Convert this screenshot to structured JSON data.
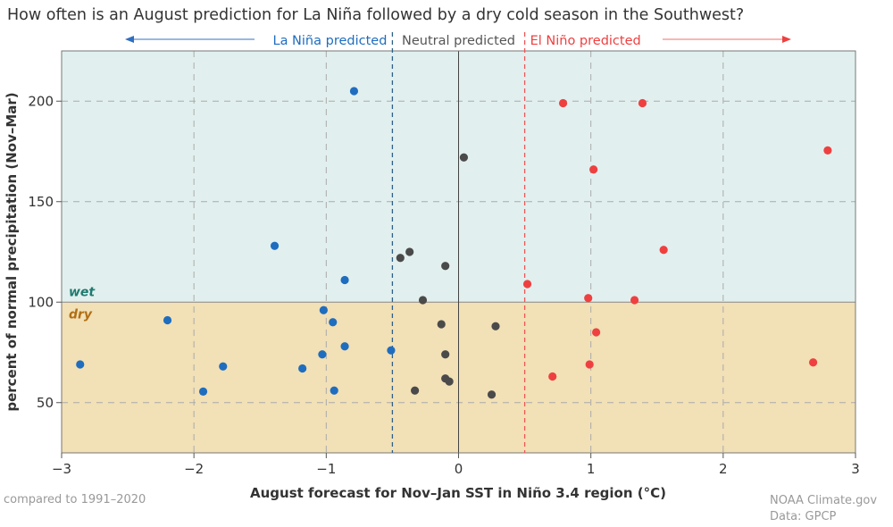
{
  "chart_data": {
    "type": "scatter",
    "title": "How often is an August prediction for La Niña followed by a dry cold season in the Southwest?",
    "xlabel": "August forecast for Nov–Jan SST in Niño 3.4 region (°C)",
    "ylabel": "percent of normal precipitation (Nov–Mar)",
    "xlim": [
      -3,
      3
    ],
    "ylim": [
      25,
      225
    ],
    "xticks": [
      -3,
      -2,
      -1,
      0,
      1,
      2,
      3
    ],
    "xtick_labels": [
      "−3",
      "−2",
      "−1",
      "0",
      "1",
      "2",
      "3"
    ],
    "yticks": [
      50,
      100,
      150,
      200
    ],
    "ytick_labels": [
      "50",
      "100",
      "150",
      "200"
    ],
    "grid": true,
    "thresholds": {
      "la_nina": -0.5,
      "el_nino": 0.5,
      "wet_dry_split": 100
    },
    "region_labels": {
      "wet": "wet",
      "dry": "dry"
    },
    "category_labels": {
      "la_nina": "La Niña predicted",
      "neutral": "Neutral predicted",
      "el_nino": "El Niño predicted"
    },
    "colors": {
      "la_nina": "#1f6dbf",
      "neutral": "#4a4a4a",
      "el_nino": "#ef4040",
      "wet_bg": "#e1f0ee",
      "dry_bg": "#f2e0b6"
    },
    "series": [
      {
        "key": "la_nina",
        "points": [
          [
            -0.79,
            205
          ],
          [
            -1.39,
            128
          ],
          [
            -0.86,
            111
          ],
          [
            -2.2,
            91
          ],
          [
            -1.02,
            96
          ],
          [
            -0.95,
            90
          ],
          [
            -0.86,
            78
          ],
          [
            -1.03,
            74
          ],
          [
            -1.18,
            67
          ],
          [
            -1.78,
            68
          ],
          [
            -2.86,
            69
          ],
          [
            -1.93,
            55.5
          ],
          [
            -0.94,
            56
          ],
          [
            -0.51,
            76
          ]
        ]
      },
      {
        "key": "neutral",
        "points": [
          [
            0.04,
            172
          ],
          [
            -0.37,
            125
          ],
          [
            -0.44,
            122
          ],
          [
            -0.1,
            118
          ],
          [
            -0.27,
            101
          ],
          [
            -0.13,
            89
          ],
          [
            0.28,
            88
          ],
          [
            -0.1,
            74
          ],
          [
            -0.1,
            62
          ],
          [
            -0.07,
            60.5
          ],
          [
            -0.33,
            56
          ],
          [
            0.25,
            54
          ]
        ]
      },
      {
        "key": "el_nino",
        "points": [
          [
            0.79,
            199
          ],
          [
            1.39,
            199
          ],
          [
            2.79,
            175.5
          ],
          [
            1.02,
            166
          ],
          [
            1.55,
            126
          ],
          [
            0.52,
            109
          ],
          [
            0.98,
            102
          ],
          [
            1.33,
            101
          ],
          [
            1.04,
            85
          ],
          [
            0.71,
            63
          ],
          [
            0.99,
            69
          ],
          [
            2.68,
            70
          ]
        ]
      }
    ]
  },
  "footer": {
    "baseline_note": "compared to 1991–2020",
    "credit": "NOAA Climate.gov",
    "source": "Data: GPCP"
  }
}
